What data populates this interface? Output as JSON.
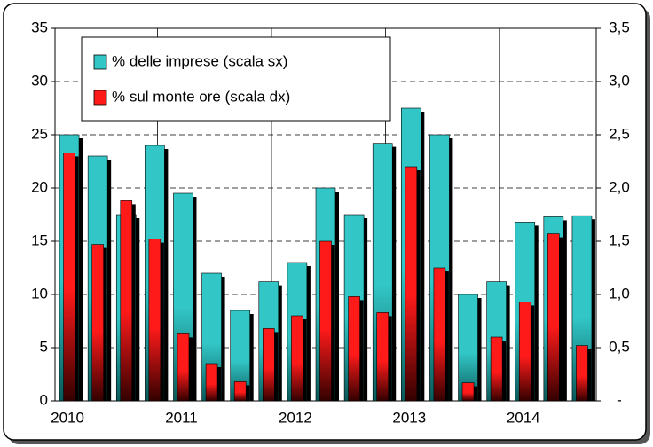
{
  "chart_data": {
    "type": "bar",
    "categories": [
      "2010",
      null,
      null,
      null,
      "2011",
      null,
      null,
      null,
      "2012",
      null,
      null,
      null,
      "2013",
      null,
      null,
      null,
      "2014",
      null,
      null
    ],
    "series": [
      {
        "name": "% delle imprese (scala sx)",
        "color": "#33c6c6",
        "values": [
          25,
          23,
          17.5,
          24,
          19.5,
          12,
          8.5,
          11.2,
          13,
          20,
          17.5,
          24.2,
          27.5,
          25,
          10,
          11.2,
          16.8,
          17.3,
          17.4
        ]
      },
      {
        "name": "% sul monte ore (scala dx)",
        "color": "#ff1a1a",
        "axis": "y2",
        "values": [
          2.33,
          1.47,
          1.88,
          1.52,
          0.63,
          0.35,
          0.18,
          0.68,
          0.8,
          1.5,
          0.98,
          0.83,
          2.2,
          1.25,
          0.17,
          0.6,
          0.93,
          1.57,
          0.52
        ]
      }
    ],
    "ylim": [
      0,
      35
    ],
    "yticks": [
      0,
      5,
      10,
      15,
      20,
      25,
      30,
      35
    ],
    "y2lim": [
      0,
      3.5
    ],
    "y2ticks": [
      {
        "value": 0,
        "label": "-"
      },
      {
        "value": 0.5,
        "label": "0,5"
      },
      {
        "value": 1,
        "label": "1,0"
      },
      {
        "value": 1.5,
        "label": "1,5"
      },
      {
        "value": 2,
        "label": "2,0"
      },
      {
        "value": 2.5,
        "label": "2,5"
      },
      {
        "value": 3,
        "label": "3,0"
      },
      {
        "value": 3.5,
        "label": "3,5"
      }
    ],
    "grid": true,
    "legend": "upper left"
  }
}
